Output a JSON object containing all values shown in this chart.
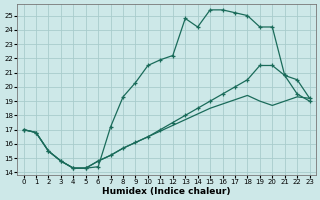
{
  "xlabel": "Humidex (Indice chaleur)",
  "xlim": [
    -0.5,
    23.5
  ],
  "ylim": [
    13.8,
    25.8
  ],
  "yticks": [
    14,
    15,
    16,
    17,
    18,
    19,
    20,
    21,
    22,
    23,
    24,
    25
  ],
  "xticks": [
    0,
    1,
    2,
    3,
    4,
    5,
    6,
    7,
    8,
    9,
    10,
    11,
    12,
    13,
    14,
    15,
    16,
    17,
    18,
    19,
    20,
    21,
    22,
    23
  ],
  "bg_color": "#cde8e8",
  "grid_color": "#a8cccc",
  "line_color": "#1a6b5a",
  "line1_x": [
    0,
    1,
    2,
    3,
    4,
    5,
    6,
    7,
    8,
    9,
    10,
    11,
    12,
    13,
    14,
    15,
    16,
    17,
    18,
    19,
    20,
    21,
    22,
    23
  ],
  "line1_y": [
    17.0,
    16.8,
    15.5,
    14.8,
    14.3,
    14.3,
    14.4,
    17.2,
    19.3,
    20.3,
    21.5,
    21.9,
    22.2,
    24.8,
    24.2,
    25.4,
    25.4,
    25.2,
    25.0,
    24.2,
    24.2,
    20.8,
    20.5,
    19.2
  ],
  "line2_x": [
    0,
    1,
    2,
    3,
    4,
    5,
    6,
    7,
    8,
    9,
    10,
    11,
    12,
    13,
    14,
    15,
    16,
    17,
    18,
    19,
    20,
    21,
    22,
    23
  ],
  "line2_y": [
    17.0,
    16.8,
    15.5,
    14.8,
    14.3,
    14.3,
    14.8,
    15.2,
    15.7,
    16.1,
    16.5,
    16.9,
    17.3,
    17.7,
    18.1,
    18.5,
    18.8,
    19.1,
    19.4,
    19.0,
    18.7,
    19.0,
    19.3,
    19.2
  ],
  "line3_x": [
    0,
    1,
    2,
    3,
    4,
    5,
    6,
    7,
    8,
    9,
    10,
    11,
    12,
    13,
    14,
    15,
    16,
    17,
    18,
    19,
    20,
    21,
    22,
    23
  ],
  "line3_y": [
    17.0,
    16.8,
    15.5,
    14.8,
    14.3,
    14.3,
    14.8,
    15.2,
    15.7,
    16.1,
    16.5,
    17.0,
    17.5,
    18.0,
    18.5,
    19.0,
    19.5,
    20.0,
    20.5,
    21.5,
    21.5,
    20.8,
    19.5,
    19.0
  ]
}
